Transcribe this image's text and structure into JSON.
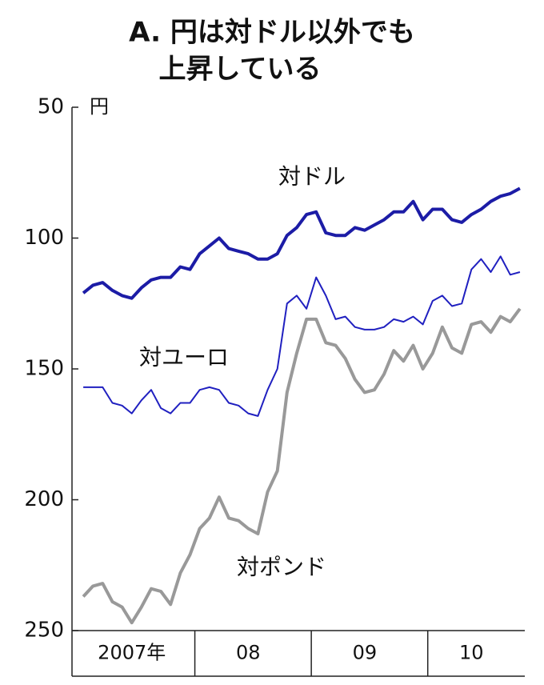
{
  "chart_data": {
    "type": "line",
    "title": [
      "A. 円は対ドル以外でも",
      "上昇している"
    ],
    "y_unit": "円",
    "categories": [
      null,
      null,
      null,
      null,
      null,
      "2007年",
      null,
      null,
      null,
      null,
      null,
      null,
      null,
      null,
      null,
      null,
      null,
      "08",
      null,
      null,
      null,
      null,
      null,
      null,
      null,
      null,
      null,
      null,
      null,
      "09",
      null,
      null,
      null,
      null,
      null,
      null,
      null,
      null,
      null,
      null,
      "10",
      null,
      null,
      null,
      null,
      null
    ],
    "series": [
      {
        "name": "対ドル",
        "color": "#1c1ca6",
        "width": 4,
        "values": [
          121,
          118,
          117,
          120,
          122,
          123,
          119,
          116,
          115,
          115,
          111,
          112,
          106,
          103,
          100,
          104,
          105,
          106,
          108,
          108,
          106,
          99,
          96,
          91,
          90,
          98,
          99,
          99,
          96,
          97,
          95,
          93,
          90,
          90,
          86,
          93,
          89,
          89,
          93,
          94,
          91,
          89,
          86,
          84,
          83,
          81
        ]
      },
      {
        "name": "対ユーロ",
        "color": "#2020c0",
        "width": 2,
        "values": [
          157,
          157,
          157,
          163,
          164,
          167,
          162,
          158,
          165,
          167,
          163,
          163,
          158,
          157,
          158,
          163,
          164,
          167,
          168,
          158,
          150,
          125,
          122,
          127,
          115,
          122,
          131,
          130,
          134,
          135,
          135,
          134,
          131,
          132,
          130,
          133,
          124,
          122,
          126,
          125,
          112,
          108,
          113,
          107,
          114,
          113
        ]
      },
      {
        "name": "対ポンド",
        "color": "#999999",
        "width": 4,
        "values": [
          237,
          233,
          232,
          239,
          241,
          247,
          241,
          234,
          235,
          240,
          228,
          221,
          211,
          207,
          199,
          207,
          208,
          211,
          213,
          197,
          189,
          159,
          144,
          131,
          131,
          140,
          141,
          146,
          154,
          159,
          158,
          152,
          143,
          147,
          141,
          150,
          144,
          134,
          142,
          144,
          133,
          132,
          136,
          130,
          132,
          127
        ]
      }
    ],
    "ylim": [
      50,
      250
    ],
    "yticks": [
      50,
      100,
      150,
      200,
      250
    ],
    "y_inverted": true,
    "grid": false
  }
}
